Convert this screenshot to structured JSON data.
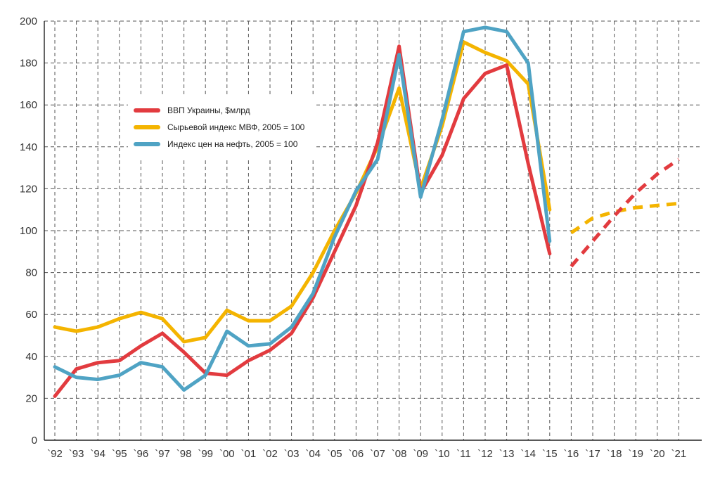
{
  "chart_data": {
    "type": "line",
    "title": "",
    "xlabel": "",
    "ylabel": "",
    "x": [
      "`92",
      "`93",
      "`94",
      "`95",
      "`96",
      "`97",
      "`98",
      "`99",
      "`00",
      "`01",
      "`02",
      "`03",
      "`04",
      "`05",
      "`06",
      "`07",
      "`08",
      "`09",
      "`10",
      "`11",
      "`12",
      "`13",
      "`14",
      "`15",
      "`16",
      "`17",
      "`18",
      "`19",
      "`20",
      "`21"
    ],
    "ylim": [
      0,
      200
    ],
    "yticks": [
      0,
      20,
      40,
      60,
      80,
      100,
      120,
      140,
      160,
      180,
      200
    ],
    "grid": true,
    "legend_position": "upper-left",
    "series": [
      {
        "name": "ВВП Украины, $млрд",
        "color": "#e23b3f",
        "values": [
          21,
          34,
          37,
          38,
          45,
          51,
          42,
          32,
          31,
          38,
          43,
          51,
          68,
          90,
          112,
          142,
          188,
          118,
          136,
          163,
          175,
          179,
          132,
          89,
          null,
          null,
          null,
          null,
          null,
          null
        ],
        "forecast": [
          null,
          null,
          null,
          null,
          null,
          null,
          null,
          null,
          null,
          null,
          null,
          null,
          null,
          null,
          null,
          null,
          null,
          null,
          null,
          null,
          null,
          null,
          null,
          null,
          83,
          95,
          107,
          118,
          127,
          134
        ]
      },
      {
        "name": "Сырьевой индекс МВФ, 2005 = 100",
        "color": "#f4b400",
        "values": [
          54,
          52,
          54,
          58,
          61,
          58,
          47,
          49,
          62,
          57,
          57,
          64,
          80,
          100,
          118,
          140,
          168,
          120,
          150,
          190,
          185,
          181,
          170,
          110,
          null,
          null,
          null,
          null,
          null,
          null
        ],
        "forecast": [
          null,
          null,
          null,
          null,
          null,
          null,
          null,
          null,
          null,
          null,
          null,
          null,
          null,
          null,
          null,
          null,
          null,
          null,
          null,
          null,
          null,
          null,
          null,
          null,
          99,
          106,
          109,
          111,
          112,
          113
        ]
      },
      {
        "name": "Индекс цен на нефть, 2005 = 100",
        "color": "#4fa3c4",
        "values": [
          35,
          30,
          29,
          31,
          37,
          35,
          24,
          31,
          52,
          45,
          46,
          54,
          70,
          97,
          119,
          134,
          184,
          116,
          153,
          195,
          197,
          195,
          180,
          95,
          null,
          null,
          null,
          null,
          null,
          null
        ]
      }
    ]
  }
}
